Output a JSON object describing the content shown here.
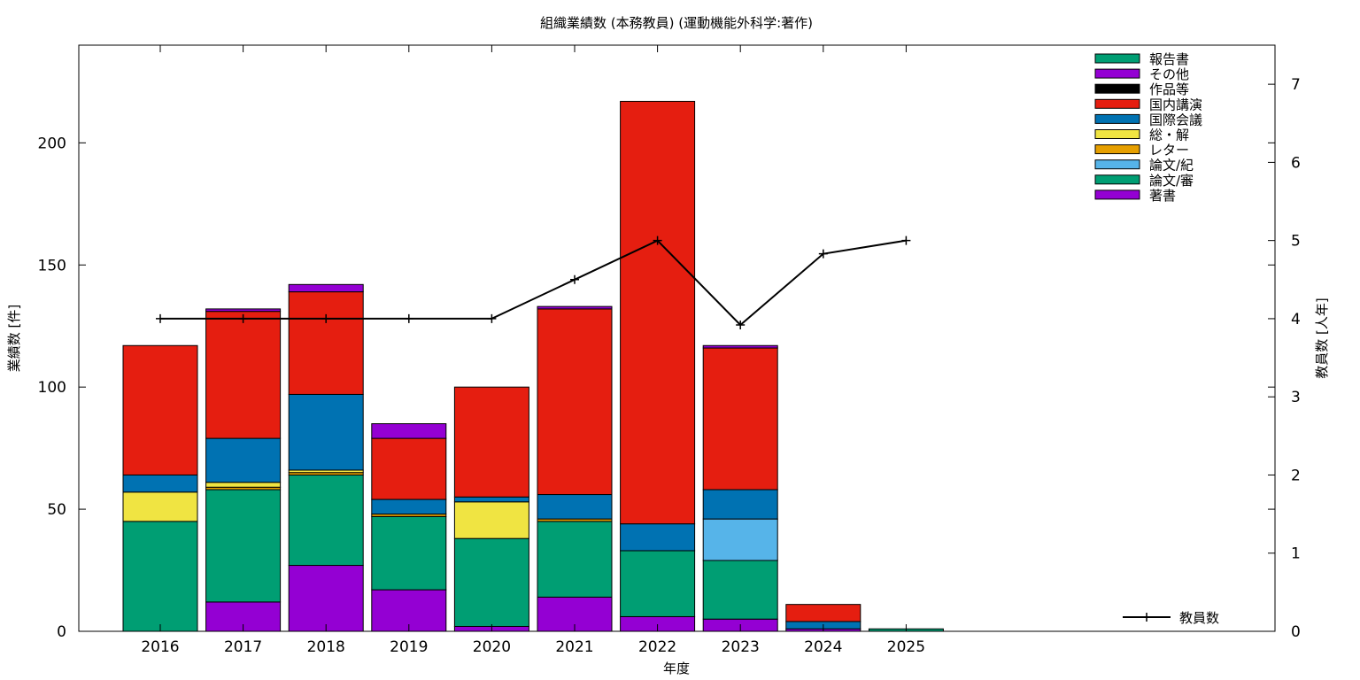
{
  "chart_data": {
    "type": "bar",
    "stacked": true,
    "title": "組織業績数 (本務教員) (運動機能外科学:著作)",
    "xlabel": "年度",
    "ylabel": "業績数 [件]",
    "y2label": "教員数 [人年]",
    "categories": [
      "2016",
      "2017",
      "2018",
      "2019",
      "2020",
      "2021",
      "2022",
      "2023",
      "2024",
      "2025"
    ],
    "ylim": [
      0,
      240
    ],
    "yticks": [
      0,
      50,
      100,
      150,
      200
    ],
    "y2lim": [
      0,
      7.5
    ],
    "y2ticks": [
      0,
      1,
      2,
      3,
      4,
      5,
      6,
      7
    ],
    "grid": false,
    "legend_position": "top-right",
    "series": [
      {
        "name": "著書",
        "color": "#9400d3",
        "values": [
          0,
          12,
          27,
          17,
          2,
          14,
          6,
          5,
          1,
          0
        ]
      },
      {
        "name": "論文/審",
        "color": "#009e73",
        "values": [
          45,
          46,
          37,
          30,
          36,
          31,
          27,
          24,
          0,
          1
        ]
      },
      {
        "name": "論文/紀",
        "color": "#56b4e9",
        "values": [
          0,
          0,
          0,
          0,
          0,
          0,
          0,
          17,
          0,
          0
        ]
      },
      {
        "name": "レター",
        "color": "#e69f00",
        "values": [
          0,
          1,
          1,
          1,
          0,
          1,
          0,
          0,
          0,
          0
        ]
      },
      {
        "name": "総・解",
        "color": "#f0e442",
        "values": [
          12,
          2,
          1,
          0,
          15,
          0,
          0,
          0,
          0,
          0
        ]
      },
      {
        "name": "国際会議",
        "color": "#0072b2",
        "values": [
          7,
          18,
          31,
          6,
          2,
          10,
          11,
          12,
          3,
          0
        ]
      },
      {
        "name": "国内講演",
        "color": "#e51e10",
        "values": [
          53,
          52,
          42,
          25,
          45,
          76,
          173,
          58,
          7,
          0
        ]
      },
      {
        "name": "作品等",
        "color": "#000000",
        "values": [
          0,
          0,
          0,
          0,
          0,
          0,
          0,
          0,
          0,
          0
        ]
      },
      {
        "name": "その他",
        "color": "#9400d3",
        "values": [
          0,
          1,
          3,
          6,
          0,
          1,
          0,
          1,
          0,
          0
        ]
      },
      {
        "name": "報告書",
        "color": "#009e73",
        "values": [
          0,
          0,
          0,
          0,
          0,
          0,
          0,
          0,
          0,
          0
        ]
      }
    ],
    "line_series": {
      "name": "教員数",
      "color": "#000000",
      "axis": "y2",
      "values": [
        4,
        4,
        4,
        4,
        4,
        4.5,
        5,
        3.92,
        4.83,
        5
      ]
    }
  }
}
